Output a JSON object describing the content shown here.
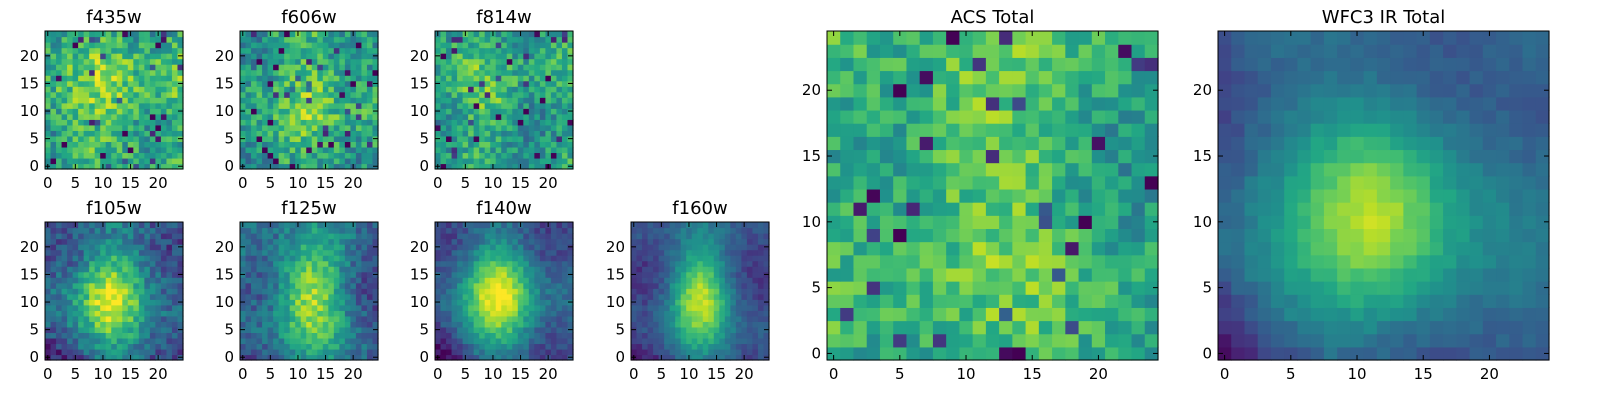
{
  "figure": {
    "description": "HST cutout panels of a galaxy in individual filters and summed totals (viridis colormap)",
    "colormap": "viridis"
  },
  "chart_data": [
    {
      "type": "heatmap",
      "title": "f435w",
      "grid": [
        25,
        25
      ],
      "xlim": [
        -0.5,
        24.5
      ],
      "ylim": [
        -0.5,
        24.5
      ],
      "xticks": [
        0,
        5,
        10,
        15,
        20
      ],
      "yticks": [
        0,
        5,
        10,
        15,
        20
      ],
      "pattern": "noise",
      "center": [
        12,
        12
      ],
      "spread": [
        8,
        8
      ],
      "amp": 0.1,
      "noise": 0.38,
      "base": 0.62,
      "seed": 11
    },
    {
      "type": "heatmap",
      "title": "f606w",
      "grid": [
        25,
        25
      ],
      "xlim": [
        -0.5,
        24.5
      ],
      "ylim": [
        -0.5,
        24.5
      ],
      "xticks": [
        0,
        5,
        10,
        15,
        20
      ],
      "yticks": [
        0,
        5,
        10,
        15,
        20
      ],
      "pattern": "noise",
      "center": [
        13,
        14
      ],
      "spread": [
        6,
        8
      ],
      "amp": 0.12,
      "noise": 0.38,
      "base": 0.58,
      "seed": 23
    },
    {
      "type": "heatmap",
      "title": "f814w",
      "grid": [
        25,
        25
      ],
      "xlim": [
        -0.5,
        24.5
      ],
      "ylim": [
        -0.5,
        24.5
      ],
      "xticks": [
        0,
        5,
        10,
        15,
        20
      ],
      "yticks": [
        0,
        5,
        10,
        15,
        20
      ],
      "pattern": "noise",
      "center": [
        10,
        12
      ],
      "spread": [
        4,
        5
      ],
      "amp": 0.18,
      "noise": 0.34,
      "base": 0.55,
      "seed": 37
    },
    {
      "type": "heatmap",
      "title": "f105w",
      "grid": [
        25,
        25
      ],
      "xlim": [
        -0.5,
        24.5
      ],
      "ylim": [
        -0.5,
        24.5
      ],
      "xticks": [
        0,
        5,
        10,
        15,
        20
      ],
      "yticks": [
        0,
        5,
        10,
        15,
        20
      ],
      "pattern": "blob",
      "center": [
        11,
        11
      ],
      "spread": [
        4.5,
        6.5
      ],
      "amp": 0.55,
      "noise": 0.26,
      "base": 0.32,
      "seed": 41
    },
    {
      "type": "heatmap",
      "title": "f125w",
      "grid": [
        25,
        25
      ],
      "xlim": [
        -0.5,
        24.5
      ],
      "ylim": [
        -0.5,
        24.5
      ],
      "xticks": [
        0,
        5,
        10,
        15,
        20
      ],
      "yticks": [
        0,
        5,
        10,
        15,
        20
      ],
      "pattern": "blob",
      "center": [
        12,
        11
      ],
      "spread": [
        4.5,
        7
      ],
      "amp": 0.55,
      "noise": 0.24,
      "base": 0.32,
      "seed": 53
    },
    {
      "type": "heatmap",
      "title": "f140w",
      "grid": [
        25,
        25
      ],
      "xlim": [
        -0.5,
        24.5
      ],
      "ylim": [
        -0.5,
        24.5
      ],
      "xticks": [
        0,
        5,
        10,
        15,
        20
      ],
      "yticks": [
        0,
        5,
        10,
        15,
        20
      ],
      "pattern": "blob",
      "center": [
        11,
        11
      ],
      "spread": [
        4.5,
        6.5
      ],
      "amp": 0.6,
      "noise": 0.16,
      "base": 0.3,
      "seed": 67
    },
    {
      "type": "heatmap",
      "title": "f160w",
      "grid": [
        25,
        25
      ],
      "xlim": [
        -0.5,
        24.5
      ],
      "ylim": [
        -0.5,
        24.5
      ],
      "xticks": [
        0,
        5,
        10,
        15,
        20
      ],
      "yticks": [
        0,
        5,
        10,
        15,
        20
      ],
      "pattern": "blob",
      "center": [
        12,
        11
      ],
      "spread": [
        4,
        6
      ],
      "amp": 0.62,
      "noise": 0.13,
      "base": 0.26,
      "seed": 79
    },
    {
      "type": "heatmap",
      "title": "ACS Total",
      "grid": [
        25,
        25
      ],
      "xlim": [
        -0.5,
        24.5
      ],
      "ylim": [
        -0.5,
        24.5
      ],
      "xticks": [
        0,
        5,
        10,
        15,
        20
      ],
      "yticks": [
        0,
        5,
        10,
        15,
        20
      ],
      "pattern": "noise",
      "center": [
        10,
        14
      ],
      "spread": [
        5,
        7
      ],
      "amp": 0.18,
      "noise": 0.3,
      "base": 0.6,
      "seed": 97
    },
    {
      "type": "heatmap",
      "title": "WFC3 IR Total",
      "grid": [
        25,
        25
      ],
      "xlim": [
        -0.5,
        24.5
      ],
      "ylim": [
        -0.5,
        24.5
      ],
      "xticks": [
        0,
        5,
        10,
        15,
        20
      ],
      "yticks": [
        0,
        5,
        10,
        15,
        20
      ],
      "pattern": "blob",
      "center": [
        11.5,
        11
      ],
      "spread": [
        4.5,
        6.5
      ],
      "amp": 0.6,
      "noise": 0.08,
      "base": 0.28,
      "seed": 113
    }
  ]
}
